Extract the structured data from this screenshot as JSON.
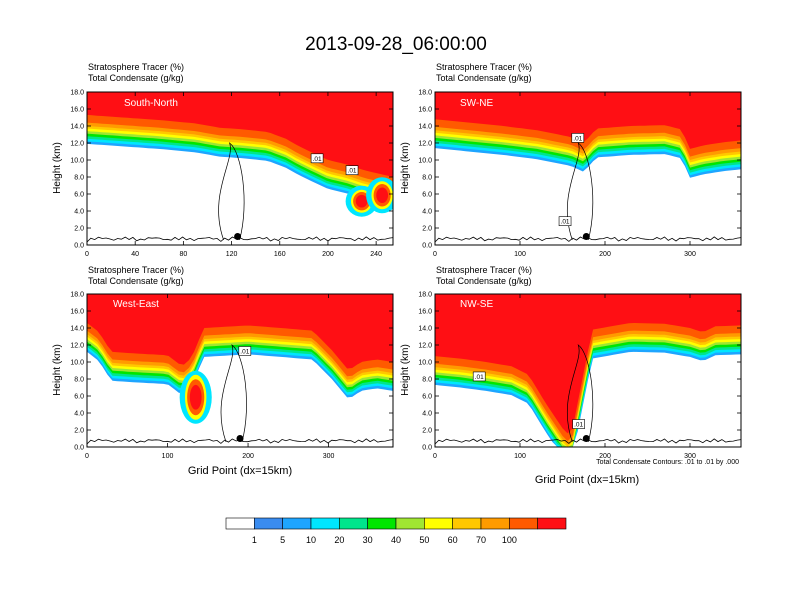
{
  "title": "2013-09-28_06:00:00",
  "chart_data": [
    {
      "type": "heatmap",
      "panel_label": "South-North",
      "left_title_1": "Stratosphere Tracer   (%)",
      "left_title_2": "Total Condensate   (g/kg)",
      "ylabel": "Height (km)",
      "xlabel": "",
      "xlim": [
        0,
        254
      ],
      "ylim": [
        0,
        18
      ],
      "xticks": [
        0,
        40,
        80,
        120,
        160,
        200,
        240
      ],
      "yticks": [
        0,
        2,
        4,
        6,
        8,
        10,
        12,
        14,
        16,
        18
      ],
      "marker_x": 125,
      "tropopause": [
        [
          0,
          15.3
        ],
        [
          30,
          15.0
        ],
        [
          60,
          14.7
        ],
        [
          90,
          14.3
        ],
        [
          110,
          13.8
        ],
        [
          130,
          13.6
        ],
        [
          150,
          13.3
        ],
        [
          165,
          12.5
        ],
        [
          175,
          11.7
        ],
        [
          185,
          11.0
        ],
        [
          200,
          10.0
        ],
        [
          215,
          9.5
        ],
        [
          230,
          8.8
        ],
        [
          245,
          8.3
        ],
        [
          254,
          8.0
        ]
      ],
      "intrusions": [
        [
          228,
          3.8,
          6.5
        ],
        [
          245,
          4.2,
          7.5
        ]
      ],
      "contour_labels": [
        {
          "x": 191,
          "y": 10.2,
          "text": ".01"
        },
        {
          "x": 220,
          "y": 8.8,
          "text": ".01"
        }
      ]
    },
    {
      "type": "heatmap",
      "panel_label": "SW-NE",
      "left_title_1": "Stratosphere Tracer   (%)",
      "left_title_2": "Total Condensate   (g/kg)",
      "ylabel": "Height (km)",
      "xlabel": "",
      "xlim": [
        0,
        360
      ],
      "ylim": [
        0,
        18
      ],
      "xticks": [
        0,
        100,
        200,
        300
      ],
      "yticks": [
        0,
        2,
        4,
        6,
        8,
        10,
        12,
        14,
        16,
        18
      ],
      "marker_x": 178,
      "tropopause": [
        [
          0,
          14.8
        ],
        [
          40,
          14.4
        ],
        [
          80,
          14.0
        ],
        [
          120,
          13.5
        ],
        [
          160,
          12.7
        ],
        [
          175,
          12.0
        ],
        [
          190,
          13.7
        ],
        [
          230,
          14.0
        ],
        [
          270,
          14.1
        ],
        [
          290,
          13.6
        ],
        [
          300,
          11.3
        ],
        [
          315,
          11.7
        ],
        [
          340,
          12.1
        ],
        [
          360,
          12.3
        ]
      ],
      "intrusions": [],
      "contour_labels": [
        {
          "x": 168,
          "y": 12.6,
          "text": ".01"
        },
        {
          "x": 153,
          "y": 2.8,
          "text": ".01"
        }
      ]
    },
    {
      "type": "heatmap",
      "panel_label": "West-East",
      "left_title_1": "Stratosphere Tracer   (%)",
      "left_title_2": "Total Condensate   (g/kg)",
      "ylabel": "Height (km)",
      "xlabel": "Grid Point (dx=15km)",
      "xlim": [
        0,
        380
      ],
      "ylim": [
        0,
        18
      ],
      "xticks": [
        0,
        100,
        200,
        300
      ],
      "yticks": [
        0,
        2,
        4,
        6,
        8,
        10,
        12,
        14,
        16,
        18
      ],
      "marker_x": 190,
      "tropopause": [
        [
          0,
          14.6
        ],
        [
          15,
          13.5
        ],
        [
          30,
          11.2
        ],
        [
          60,
          11.0
        ],
        [
          100,
          10.8
        ],
        [
          118,
          9.5
        ],
        [
          130,
          10.5
        ],
        [
          145,
          14.0
        ],
        [
          200,
          14.3
        ],
        [
          240,
          14.0
        ],
        [
          280,
          13.7
        ],
        [
          305,
          11.3
        ],
        [
          325,
          9.0
        ],
        [
          340,
          10.0
        ],
        [
          360,
          10.3
        ],
        [
          380,
          10.0
        ]
      ],
      "intrusions": [
        [
          135,
          3.2,
          8.5
        ]
      ],
      "contour_labels": [
        {
          "x": 196,
          "y": 11.3,
          "text": ".01"
        }
      ]
    },
    {
      "type": "heatmap",
      "panel_label": "NW-SE",
      "left_title_1": "Stratosphere Tracer   (%)",
      "left_title_2": "Total Condensate   (g/kg)",
      "ylabel": "Height (km)",
      "xlabel": "Grid Point (dx=15km)",
      "xlim": [
        0,
        360
      ],
      "ylim": [
        0,
        18
      ],
      "xticks": [
        0,
        100,
        200,
        300
      ],
      "yticks": [
        0,
        2,
        4,
        6,
        8,
        10,
        12,
        14,
        16,
        18
      ],
      "marker_x": 178,
      "tropopause": [
        [
          0,
          10.7
        ],
        [
          30,
          10.4
        ],
        [
          60,
          10.0
        ],
        [
          90,
          9.5
        ],
        [
          110,
          8.5
        ],
        [
          130,
          5.2
        ],
        [
          150,
          2.2
        ],
        [
          160,
          1.2
        ],
        [
          175,
          8.8
        ],
        [
          185,
          13.8
        ],
        [
          230,
          14.6
        ],
        [
          270,
          14.5
        ],
        [
          300,
          14.0
        ],
        [
          315,
          13.5
        ],
        [
          330,
          14.2
        ],
        [
          360,
          14.3
        ]
      ],
      "intrusions": [],
      "contour_labels": [
        {
          "x": 52,
          "y": 8.3,
          "text": ".01"
        },
        {
          "x": 169,
          "y": 2.7,
          "text": ".01"
        }
      ],
      "footnote": "Total Condensate Contours: .01 to .01 by .000"
    }
  ],
  "colorbar": {
    "colors": [
      "#ffffff",
      "#3a8cf0",
      "#1ea5ff",
      "#00e6ff",
      "#00e58c",
      "#00e600",
      "#a0e632",
      "#ffff00",
      "#ffc800",
      "#ff9b00",
      "#ff5a00",
      "#ff0f14"
    ],
    "labels": [
      "1",
      "5",
      "10",
      "20",
      "30",
      "40",
      "50",
      "60",
      "70",
      "100"
    ]
  }
}
